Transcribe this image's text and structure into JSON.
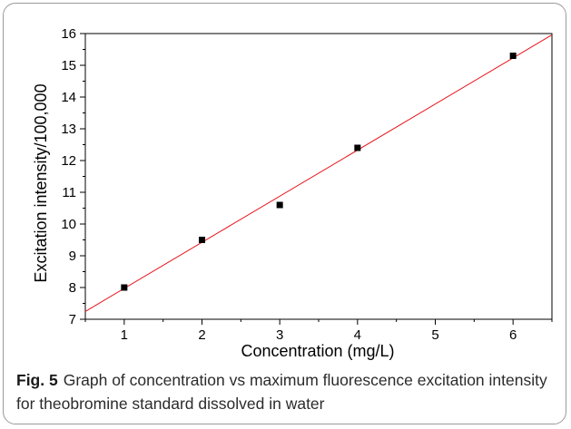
{
  "chart_data": {
    "type": "scatter",
    "title": "",
    "xlabel": "Concentration (mg/L)",
    "ylabel": "Excitation intensity/100,000",
    "xlim": [
      0.5,
      6.5
    ],
    "ylim": [
      7,
      16
    ],
    "x_ticks": [
      1,
      2,
      3,
      4,
      5,
      6
    ],
    "y_ticks": [
      7,
      8,
      9,
      10,
      11,
      12,
      13,
      14,
      15,
      16
    ],
    "grid": false,
    "legend": "none",
    "series": [
      {
        "points": [
          {
            "x": 1,
            "y": 8.0
          },
          {
            "x": 2,
            "y": 9.5
          },
          {
            "x": 3,
            "y": 10.6
          },
          {
            "x": 4,
            "y": 12.4
          },
          {
            "x": 6,
            "y": 15.3
          }
        ],
        "marker": "square",
        "color": "#000000"
      }
    ],
    "fit_line": {
      "slope": 1.452,
      "intercept": 6.52,
      "color": "#e8121a"
    }
  },
  "caption": {
    "label": "Fig. 5",
    "text": "Graph of concentration vs maximum fluorescence excitation intensity for theobromine standard dissolved in water"
  }
}
